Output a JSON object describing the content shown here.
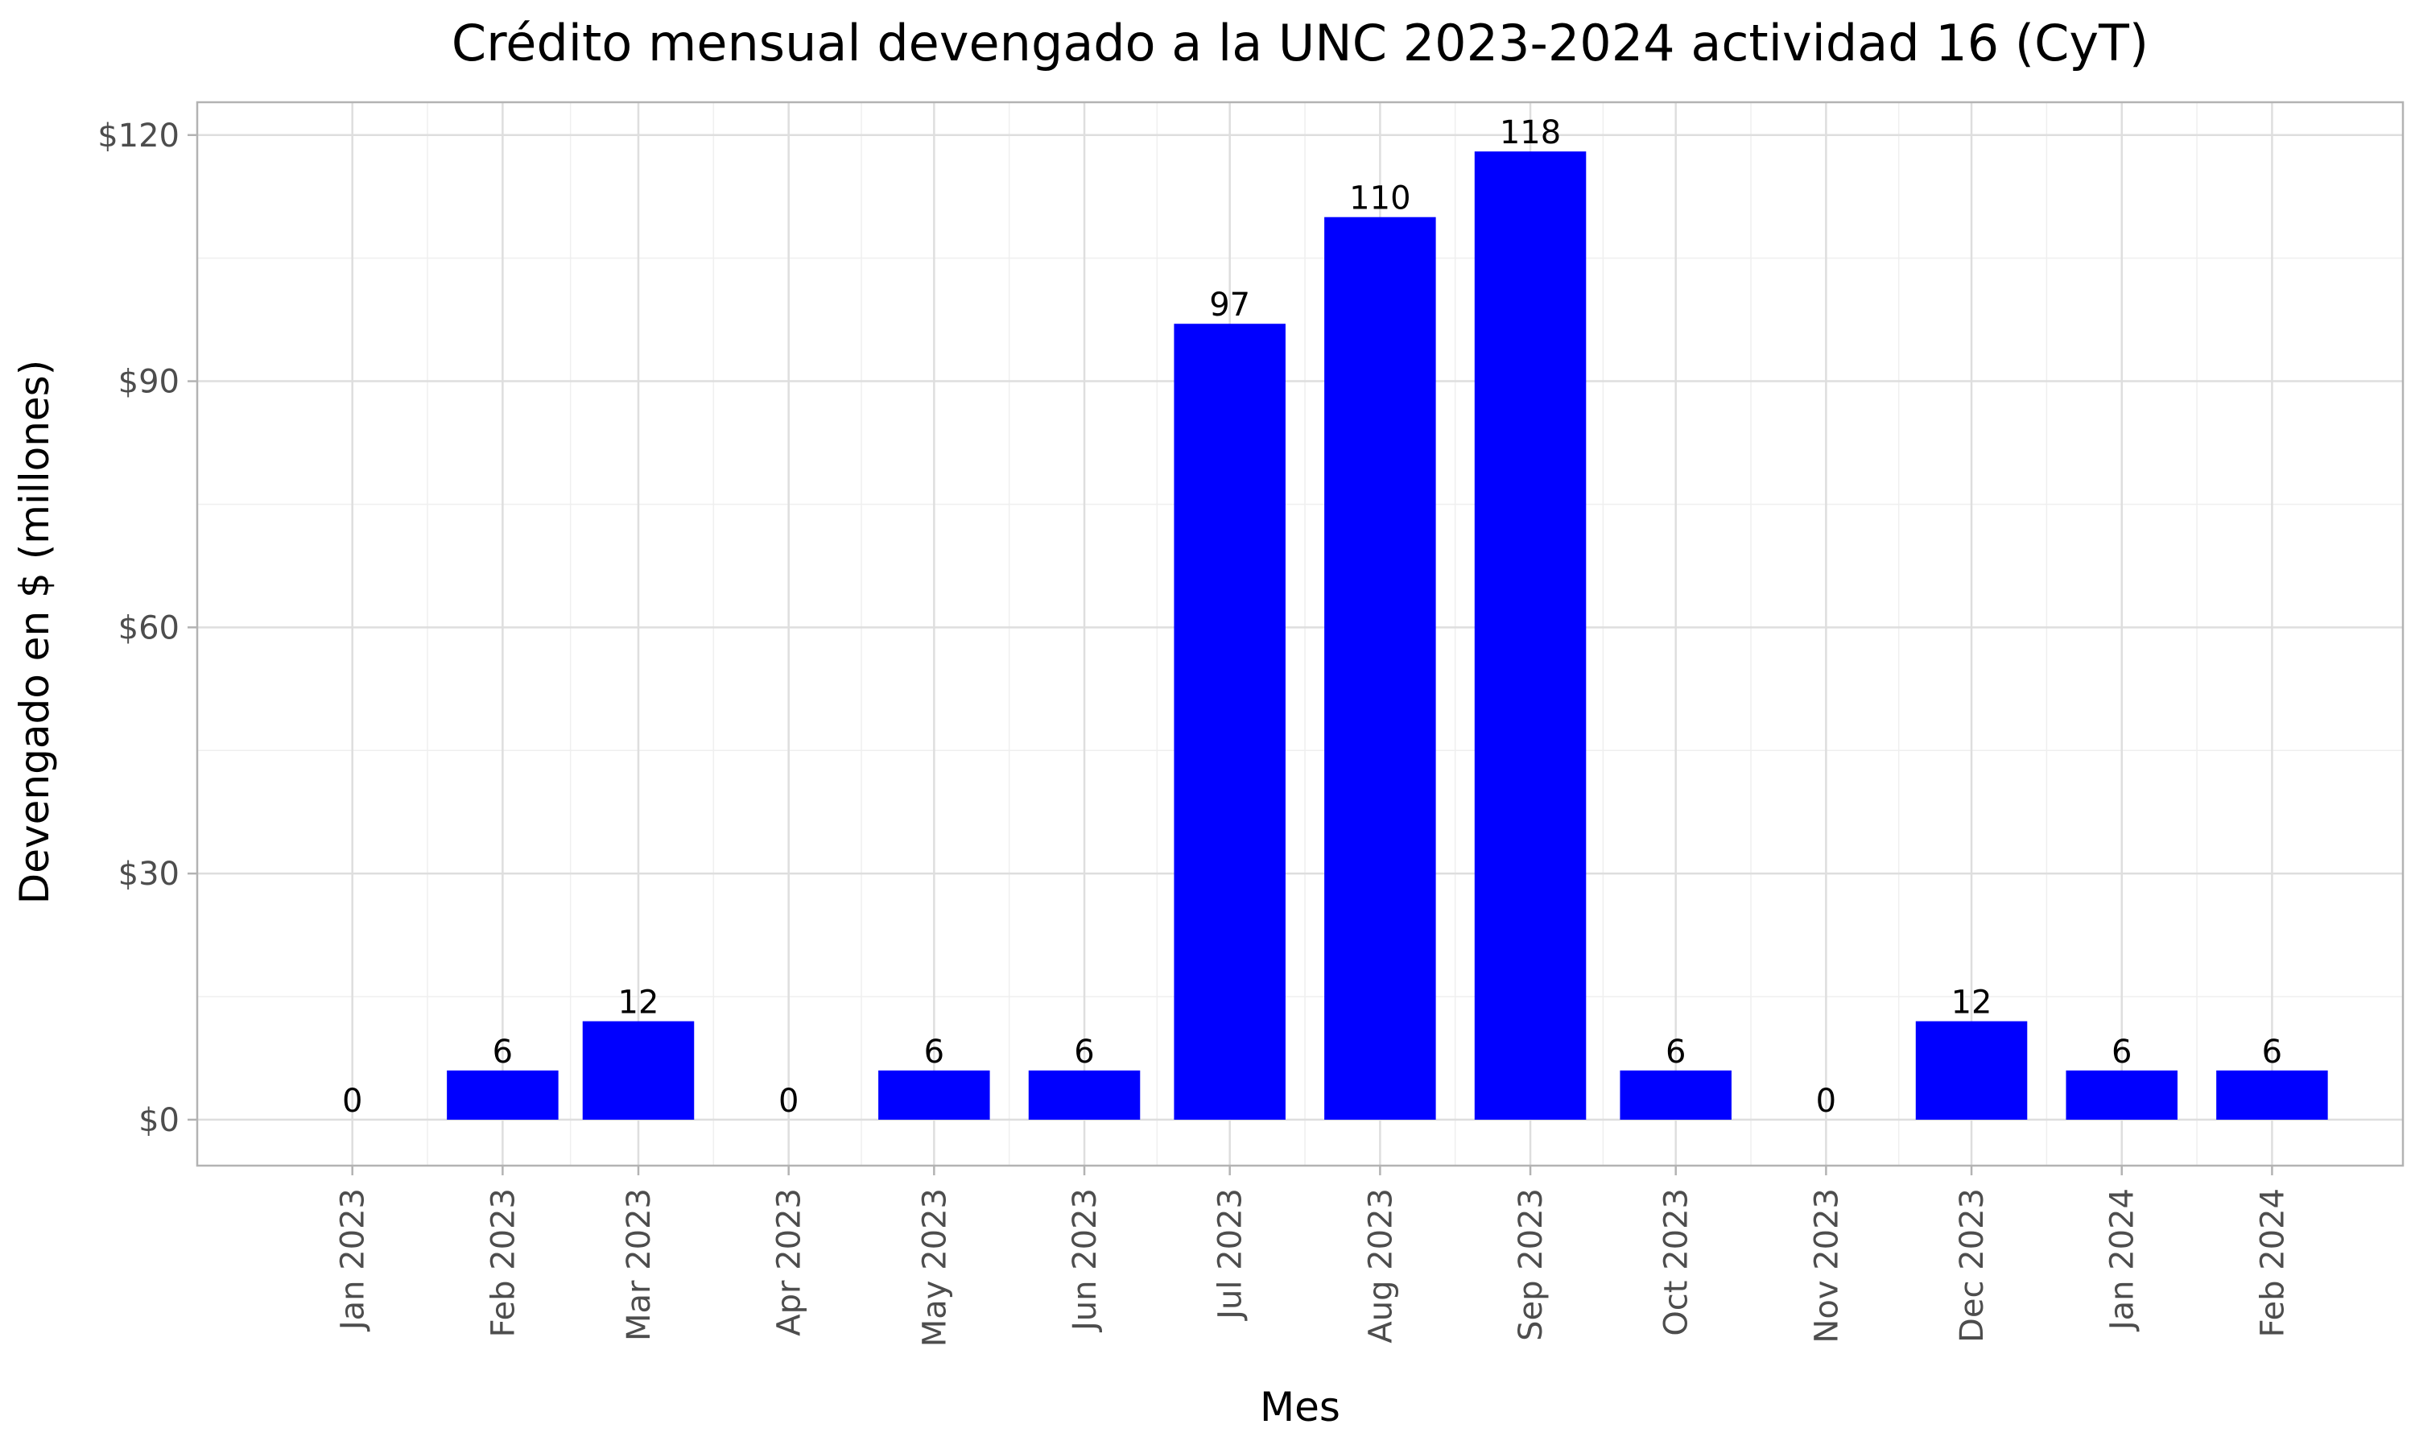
{
  "chart_data": {
    "type": "bar",
    "title": "Crédito mensual devengado a la UNC 2023-2024 actividad 16 (CyT)",
    "xlabel": "Mes",
    "ylabel": "Devengado en $ (millones)",
    "categories": [
      "Jan 2023",
      "Feb 2023",
      "Mar 2023",
      "Apr 2023",
      "May 2023",
      "Jun 2023",
      "Jul 2023",
      "Aug 2023",
      "Sep 2023",
      "Oct 2023",
      "Nov 2023",
      "Dec 2023",
      "Jan 2024",
      "Feb 2024"
    ],
    "x_dates": [
      "2023-01-01",
      "2023-02-01",
      "2023-03-01",
      "2023-04-01",
      "2023-05-01",
      "2023-06-01",
      "2023-07-01",
      "2023-08-01",
      "2023-09-01",
      "2023-10-01",
      "2023-11-01",
      "2023-12-01",
      "2024-01-01",
      "2024-02-01"
    ],
    "values": [
      0,
      6,
      12,
      0,
      6,
      6,
      97,
      110,
      118,
      6,
      0,
      12,
      6,
      6
    ],
    "data_labels": [
      "0",
      "6",
      "12",
      "0",
      "6",
      "6",
      "97",
      "110",
      "118",
      "6",
      "0",
      "12",
      "6",
      "6"
    ],
    "y_ticks": [
      0,
      30,
      60,
      90,
      120
    ],
    "y_tick_labels": [
      "$0",
      "$30",
      "$60",
      "$90",
      "$120"
    ],
    "ylim": [
      -5.6,
      124
    ],
    "bar_color": "#0000ff",
    "grid": true,
    "legend": "none"
  }
}
